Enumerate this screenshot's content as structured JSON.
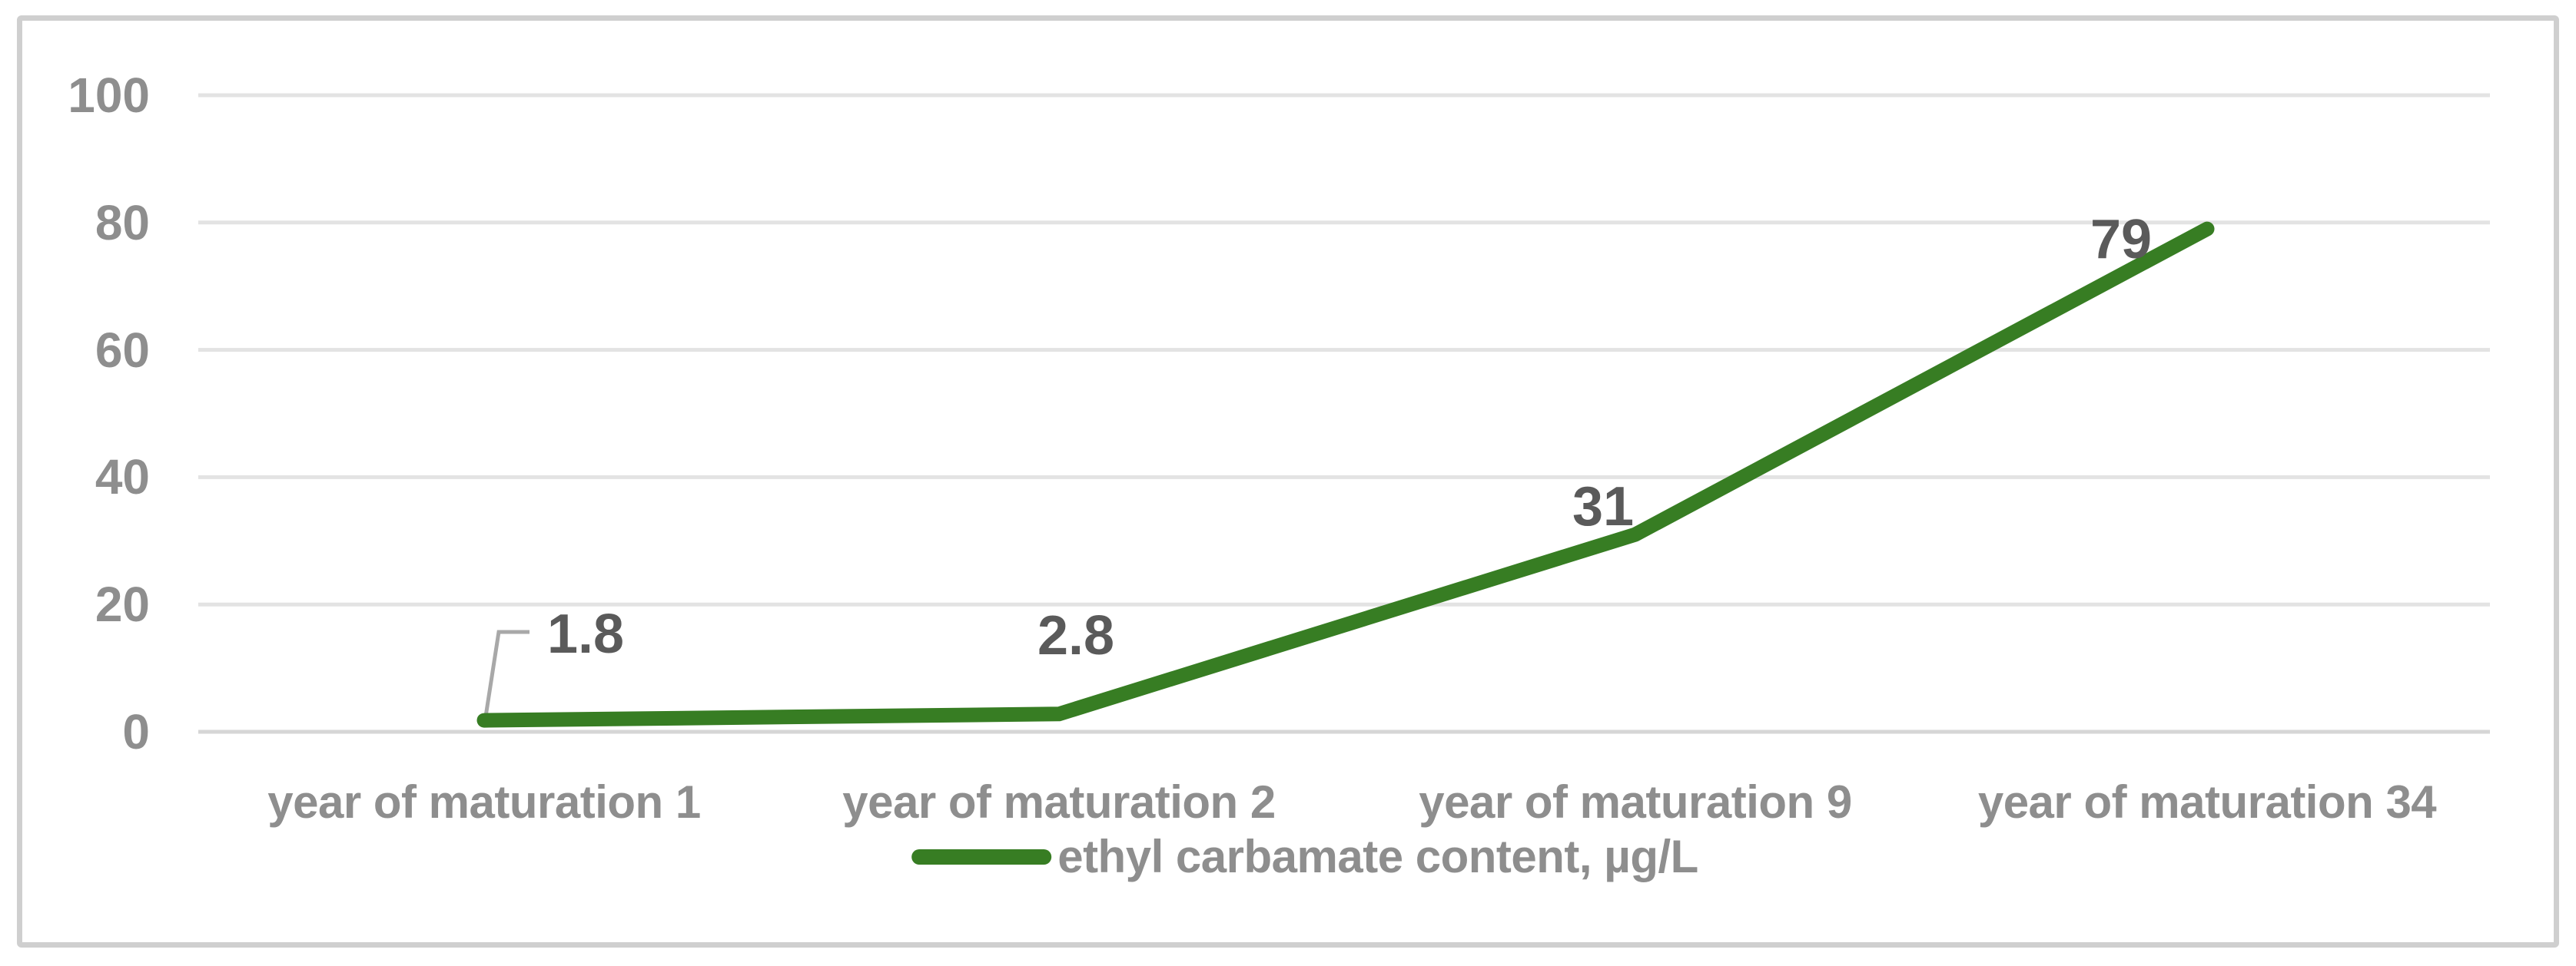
{
  "chart_data": {
    "type": "line",
    "categories": [
      "year of maturation 1",
      "year of maturation 2",
      "year of maturation 9",
      "year of maturation 34"
    ],
    "series": [
      {
        "name": "ethyl carbamate content, µg/L",
        "values": [
          1.8,
          2.8,
          31,
          79
        ]
      }
    ],
    "data_labels": [
      "1.8",
      "2.8",
      "31",
      "79"
    ],
    "title": "",
    "xlabel": "",
    "ylabel": "",
    "ylim": [
      0,
      100
    ],
    "yticks": [
      100,
      80,
      60,
      40,
      20,
      0
    ],
    "grid": true,
    "legend": "ethyl carbamate content, µg/L",
    "legend_position": "bottom",
    "colors": {
      "series": "#377d23",
      "axis_text": "#8e8e8e",
      "data_label_text": "#5a5a5a",
      "gridline": "#e3e3e3",
      "axis_line": "#d6d6d6",
      "frame_border": "#cfcfcf",
      "leader_line": "#a8a8a8",
      "background": "#ffffff"
    }
  }
}
